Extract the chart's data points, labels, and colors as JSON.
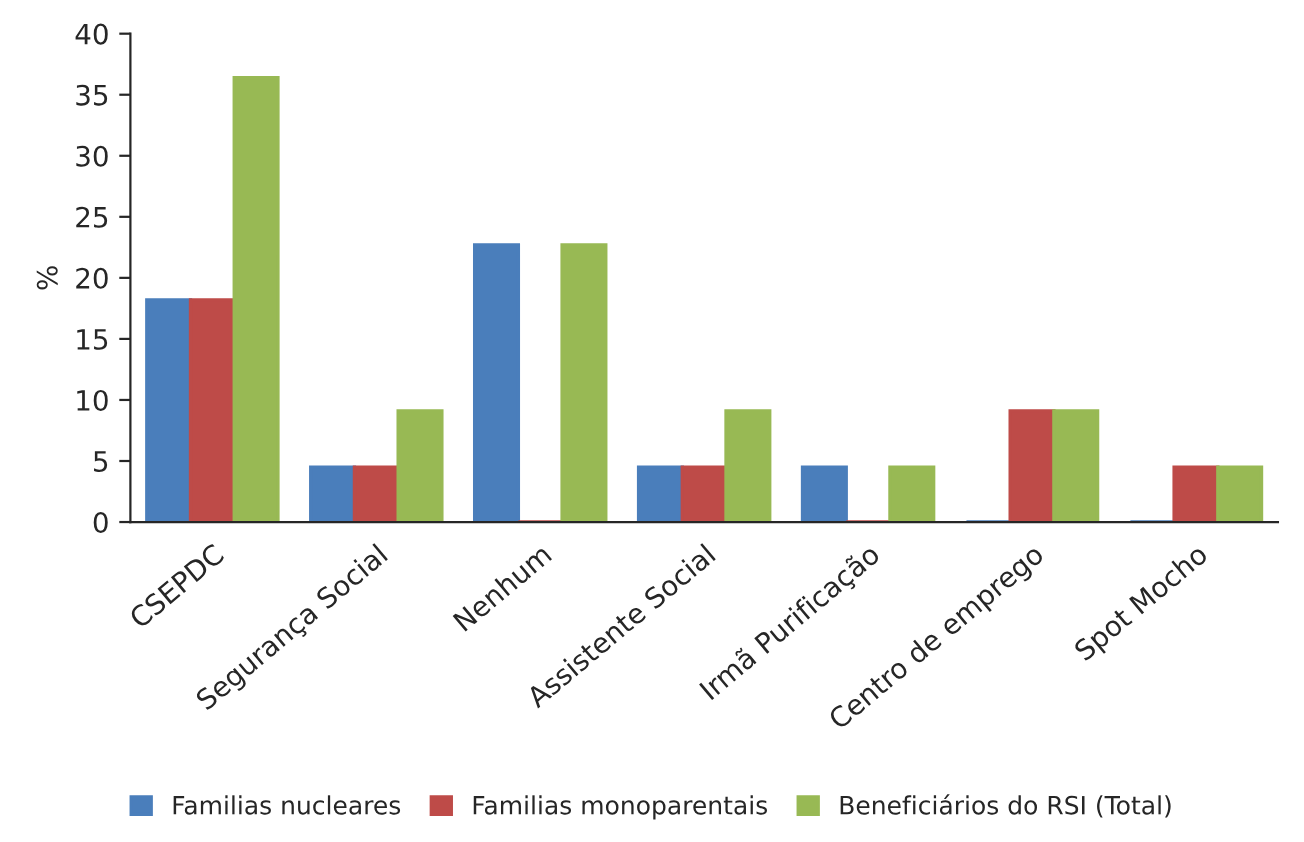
{
  "chart_data": {
    "type": "bar",
    "ylabel": "%",
    "categories": [
      "CSEPDC",
      "Segurança Social",
      "Nenhum",
      "Assistente Social",
      "Irmã Purificação",
      "Centro de emprego",
      "Spot Mocho"
    ],
    "series": [
      {
        "name": "Familias nucleares",
        "color": "#4a7ebb",
        "values": [
          18.2,
          4.5,
          22.7,
          4.5,
          4.5,
          0,
          0
        ]
      },
      {
        "name": "Familias monoparentais",
        "color": "#be4b48",
        "values": [
          18.2,
          4.5,
          0,
          4.5,
          0,
          9.1,
          4.5
        ]
      },
      {
        "name": "Beneficiários do RSI (Total)",
        "color": "#98b954",
        "values": [
          36.4,
          9.1,
          22.7,
          9.1,
          4.5,
          9.1,
          4.5
        ]
      }
    ],
    "ylim": [
      0,
      40
    ],
    "yticks": [
      0,
      5,
      10,
      15,
      20,
      25,
      30,
      35,
      40
    ],
    "grid": false,
    "legend": "bottom"
  }
}
